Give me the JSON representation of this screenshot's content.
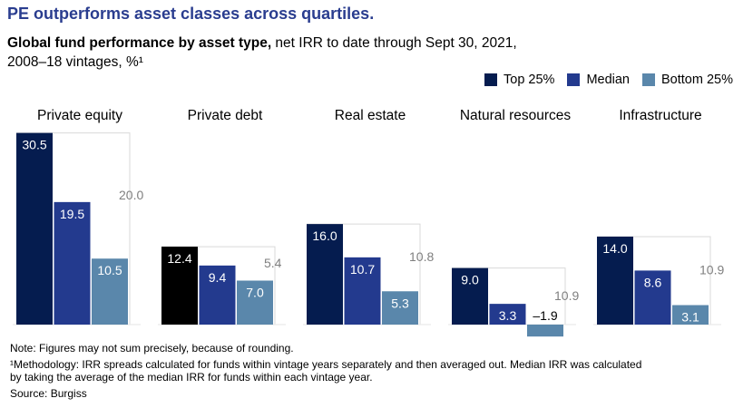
{
  "header": {
    "title": "PE outperforms asset classes across quartiles.",
    "subtitle_bold": "Global fund performance by asset type,",
    "subtitle_rest": " net IRR to date through Sept 30, 2021,",
    "subtitle_line2": "2008–18 vintages, %¹"
  },
  "legend": {
    "items": [
      {
        "label": "Top 25%",
        "color": "#051c4f"
      },
      {
        "label": "Median",
        "color": "#233a8e"
      },
      {
        "label": "Bottom 25%",
        "color": "#5a87ab"
      }
    ]
  },
  "colors": {
    "top": "#051c4f",
    "median": "#233a8e",
    "bottom": "#5a87ab",
    "highlight_top": "#000000",
    "spread_label": "#7f7f7f",
    "outline": "#d9d9d9"
  },
  "chart_data": {
    "type": "bar",
    "series_names": [
      "Top 25%",
      "Median",
      "Bottom 25%"
    ],
    "panels": [
      {
        "name": "Private equity",
        "top": 30.5,
        "median": 19.5,
        "bottom": 10.5,
        "spread": 20.0,
        "top_label": "30.5",
        "median_label": "19.5",
        "bottom_label": "10.5",
        "spread_label": "20.0"
      },
      {
        "name": "Private debt",
        "top": 12.4,
        "median": 9.4,
        "bottom": 7.0,
        "spread": 5.4,
        "top_label": "12.4",
        "median_label": "9.4",
        "bottom_label": "7.0",
        "spread_label": "5.4"
      },
      {
        "name": "Real estate",
        "top": 16.0,
        "median": 10.7,
        "bottom": 5.3,
        "spread": 10.8,
        "top_label": "16.0",
        "median_label": "10.7",
        "bottom_label": "5.3",
        "spread_label": "10.8"
      },
      {
        "name": "Natural resources",
        "top": 9.0,
        "median": 3.3,
        "bottom": -1.9,
        "spread": 10.9,
        "top_label": "9.0",
        "median_label": "3.3",
        "bottom_label": "–1.9",
        "spread_label": "10.9"
      },
      {
        "name": "Infrastructure",
        "top": 14.0,
        "median": 8.6,
        "bottom": 3.1,
        "spread": 10.9,
        "top_label": "14.0",
        "median_label": "8.6",
        "bottom_label": "3.1",
        "spread_label": "10.9"
      }
    ],
    "highlight_top_panel": "Private debt"
  },
  "footnotes": {
    "note": "Note: Figures may not sum precisely, because of rounding.",
    "methodology_line1": "¹Methodology: IRR spreads calculated for funds within vintage years separately and then averaged out. Median IRR was calculated",
    "methodology_line2": " by taking the average of the median IRR for funds within each vintage year.",
    "source": "Source: Burgiss"
  }
}
